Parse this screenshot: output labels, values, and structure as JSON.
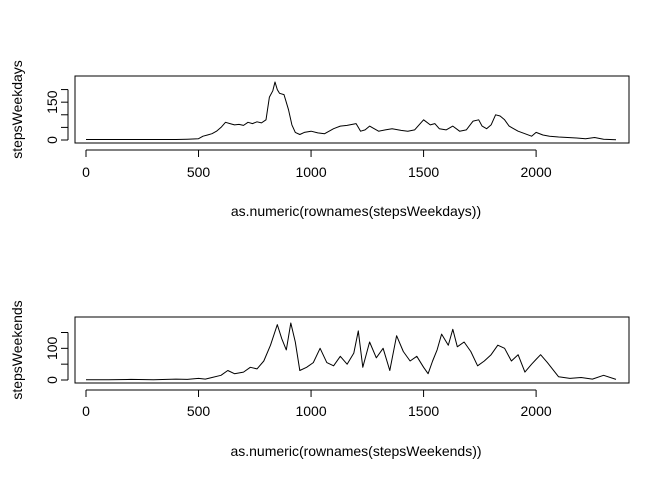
{
  "chart_data": [
    {
      "type": "line",
      "xlabel": "as.numeric(rownames(stepsWeekdays))",
      "ylabel": "stepsWeekdays",
      "xlim": [
        0,
        2355
      ],
      "ylim": [
        0,
        230
      ],
      "xticks": [
        0,
        500,
        1000,
        1500,
        2000
      ],
      "yticks": [
        0,
        50,
        100,
        150,
        200
      ],
      "ytick_labels": [
        "0",
        "",
        "",
        "150",
        ""
      ],
      "grid": false,
      "series": [
        {
          "x": [
            0,
            100,
            200,
            300,
            400,
            450,
            500,
            520,
            540,
            560,
            580,
            600,
            620,
            640,
            660,
            680,
            700,
            720,
            740,
            760,
            780,
            800,
            815,
            830,
            840,
            850,
            860,
            880,
            900,
            915,
            930,
            950,
            970,
            1000,
            1030,
            1060,
            1100,
            1130,
            1160,
            1200,
            1220,
            1240,
            1260,
            1300,
            1330,
            1360,
            1400,
            1430,
            1460,
            1500,
            1530,
            1550,
            1570,
            1600,
            1630,
            1660,
            1690,
            1720,
            1745,
            1760,
            1780,
            1800,
            1820,
            1840,
            1860,
            1880,
            1900,
            1920,
            1950,
            1980,
            2000,
            2030,
            2060,
            2100,
            2140,
            2180,
            2220,
            2260,
            2300,
            2355
          ],
          "y": [
            2,
            2,
            2,
            2,
            2,
            3,
            5,
            15,
            20,
            25,
            35,
            50,
            70,
            65,
            60,
            62,
            58,
            70,
            65,
            72,
            68,
            80,
            170,
            195,
            230,
            200,
            185,
            180,
            120,
            60,
            30,
            22,
            30,
            35,
            28,
            25,
            45,
            55,
            58,
            65,
            35,
            40,
            55,
            35,
            40,
            45,
            38,
            35,
            40,
            80,
            60,
            65,
            45,
            40,
            55,
            35,
            40,
            75,
            80,
            55,
            45,
            60,
            100,
            95,
            80,
            55,
            45,
            35,
            25,
            15,
            30,
            20,
            15,
            12,
            10,
            8,
            5,
            10,
            3,
            1
          ]
        }
      ]
    },
    {
      "type": "line",
      "xlabel": "as.numeric(rownames(stepsWeekends))",
      "ylabel": "stepsWeekends",
      "xlim": [
        0,
        2355
      ],
      "ylim": [
        0,
        180
      ],
      "xticks": [
        0,
        500,
        1000,
        1500,
        2000
      ],
      "yticks": [
        0,
        50,
        100,
        150
      ],
      "ytick_labels": [
        "0",
        "",
        "100",
        ""
      ],
      "grid": false,
      "series": [
        {
          "x": [
            0,
            100,
            200,
            300,
            400,
            450,
            500,
            530,
            560,
            600,
            630,
            660,
            700,
            730,
            760,
            790,
            820,
            850,
            870,
            890,
            910,
            930,
            950,
            980,
            1010,
            1040,
            1070,
            1100,
            1130,
            1160,
            1190,
            1210,
            1230,
            1260,
            1290,
            1320,
            1350,
            1380,
            1410,
            1440,
            1470,
            1500,
            1520,
            1540,
            1560,
            1580,
            1610,
            1630,
            1650,
            1680,
            1710,
            1740,
            1770,
            1800,
            1830,
            1860,
            1890,
            1920,
            1950,
            1980,
            2000,
            2020,
            2050,
            2100,
            2150,
            2200,
            2250,
            2300,
            2355
          ],
          "y": [
            1,
            1,
            2,
            1,
            3,
            2,
            5,
            3,
            8,
            15,
            30,
            20,
            25,
            40,
            35,
            60,
            110,
            175,
            130,
            95,
            180,
            120,
            30,
            40,
            55,
            100,
            55,
            45,
            75,
            50,
            85,
            155,
            40,
            120,
            70,
            100,
            30,
            140,
            90,
            60,
            75,
            40,
            20,
            60,
            95,
            145,
            110,
            160,
            105,
            120,
            90,
            45,
            60,
            80,
            110,
            100,
            60,
            80,
            25,
            50,
            65,
            80,
            55,
            10,
            5,
            8,
            3,
            15,
            2
          ]
        }
      ]
    }
  ]
}
